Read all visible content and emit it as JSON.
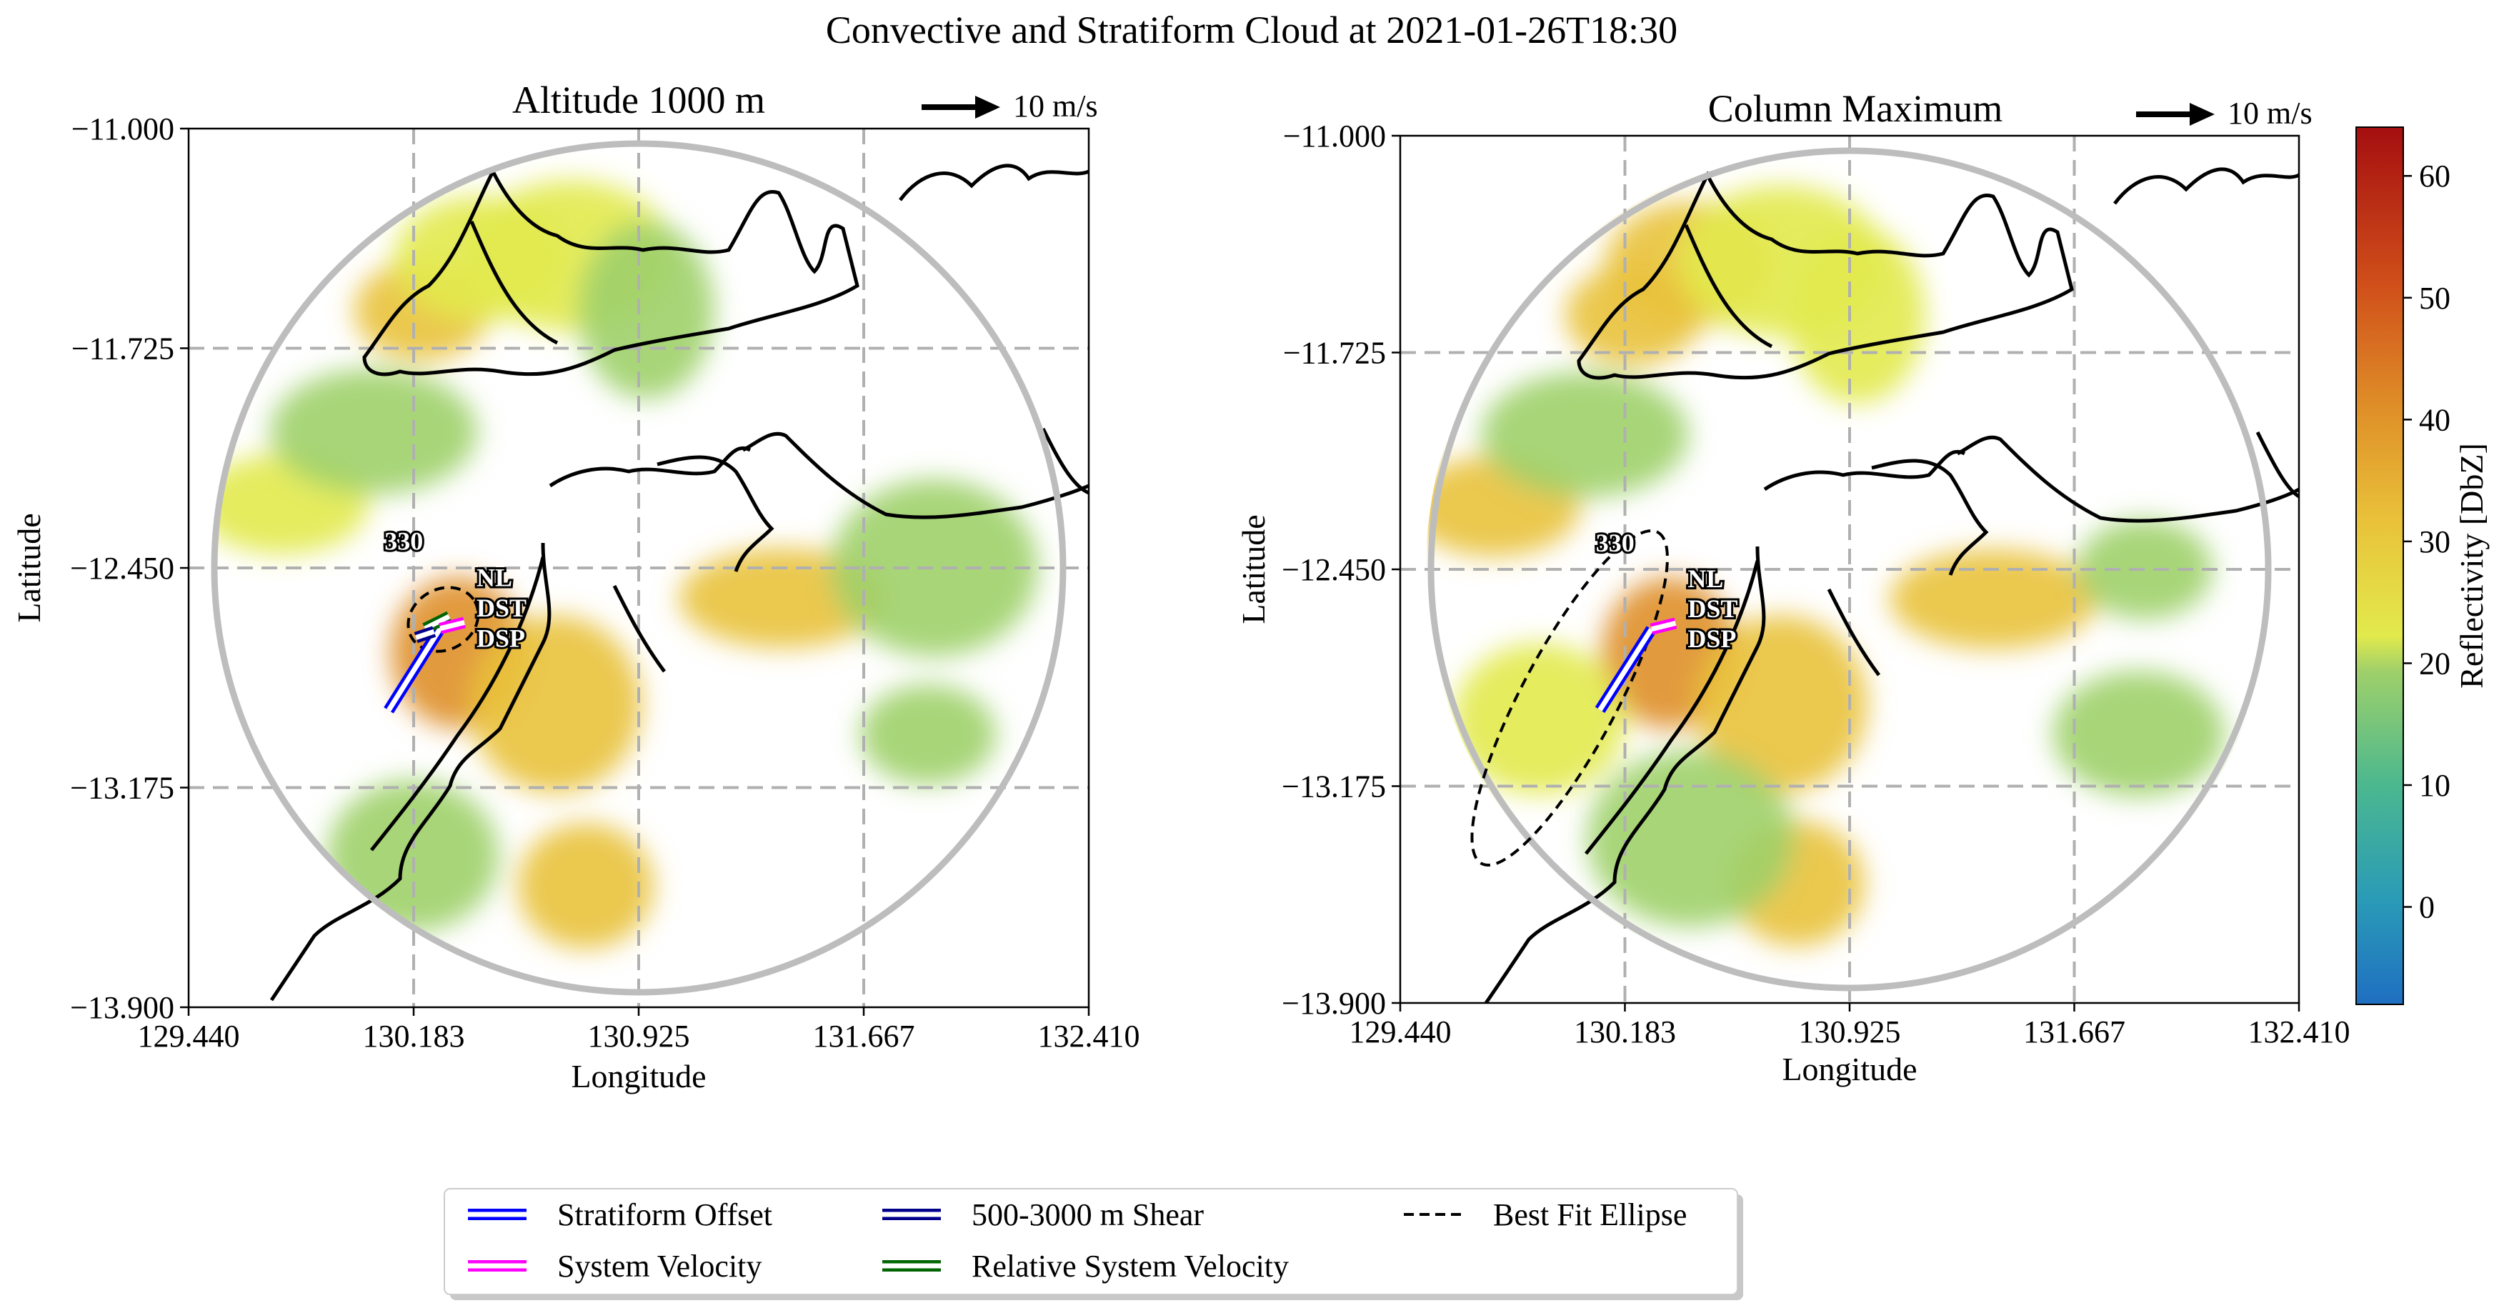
{
  "figure": {
    "suptitle": "Convective and Stratiform Cloud at 2021-01-26T18:30"
  },
  "colors": {
    "stratiform_offset": "#0000ff",
    "system_velocity": "#ff00ff",
    "shear": "#00008b",
    "relative_system_velocity": "#006400",
    "ellipse": "#000000",
    "range_ring": "#bdbdbd",
    "grid": "#b0b0b0"
  },
  "chart_data": [
    {
      "type": "heatmap",
      "title": "Altitude 1000 m",
      "xlabel": "Longitude",
      "ylabel": "Latitude",
      "xlim": [
        129.44,
        132.41
      ],
      "ylim": [
        -13.9,
        -11.0
      ],
      "xticks": [
        "129.440",
        "130.183",
        "130.925",
        "131.667",
        "132.410"
      ],
      "yticks": [
        "-11.000",
        "-11.725",
        "-12.450",
        "-13.175",
        "-13.900"
      ],
      "grid": true,
      "reference_vector": "10 m/s",
      "radar_center": [
        130.925,
        -12.45
      ],
      "range_radius_deg": 1.4,
      "object_label": "330",
      "object_label_pos": [
        130.15,
        -12.39
      ],
      "vector_labels": [
        {
          "text": "NL",
          "pos": [
            130.39,
            -12.51
          ]
        },
        {
          "text": "DST",
          "pos": [
            130.39,
            -12.61
          ]
        },
        {
          "text": "DSP",
          "pos": [
            130.39,
            -12.71
          ]
        }
      ],
      "vectors": {
        "stratiform_offset": {
          "start": [
            130.1,
            -12.92
          ],
          "end": [
            130.27,
            -12.65
          ]
        },
        "system_velocity": {
          "start": [
            130.35,
            -12.63
          ],
          "end": [
            130.27,
            -12.65
          ]
        },
        "shear": {
          "start": [
            130.19,
            -12.68
          ],
          "end": [
            130.25,
            -12.66
          ]
        },
        "relative_system_velocity": {
          "start": [
            130.22,
            -12.65
          ],
          "end": [
            130.3,
            -12.61
          ]
        }
      },
      "ellipse": {
        "center": [
          130.28,
          -12.62
        ],
        "rx_deg": 0.12,
        "ry_deg": 0.1,
        "angle_deg": -30
      },
      "reflectivity_cells": [
        {
          "lon": 130.21,
          "lat": -11.6,
          "dbz": 25
        },
        {
          "lon": 130.4,
          "lat": -11.43,
          "dbz": 22
        },
        {
          "lon": 130.7,
          "lat": -11.42,
          "dbz": 20
        },
        {
          "lon": 130.95,
          "lat": -11.6,
          "dbz": 17
        },
        {
          "lon": 129.75,
          "lat": -12.24,
          "dbz": 22
        },
        {
          "lon": 130.05,
          "lat": -12.0,
          "dbz": 17
        },
        {
          "lon": 130.33,
          "lat": -12.73,
          "dbz": 33
        },
        {
          "lon": 130.65,
          "lat": -12.9,
          "dbz": 28
        },
        {
          "lon": 131.4,
          "lat": -12.55,
          "dbz": 27
        },
        {
          "lon": 130.75,
          "lat": -13.5,
          "dbz": 30
        },
        {
          "lon": 130.18,
          "lat": -13.4,
          "dbz": 18
        },
        {
          "lon": 131.9,
          "lat": -12.45,
          "dbz": 14
        },
        {
          "lon": 131.88,
          "lat": -13.0,
          "dbz": 12
        }
      ]
    },
    {
      "type": "heatmap",
      "title": "Column Maximum",
      "xlabel": "Longitude",
      "ylabel": "Latitude",
      "xlim": [
        129.44,
        132.41
      ],
      "ylim": [
        -13.9,
        -11.0
      ],
      "xticks": [
        "129.440",
        "130.183",
        "130.925",
        "131.667",
        "132.410"
      ],
      "yticks": [
        "-11.000",
        "-11.725",
        "-12.450",
        "-13.175",
        "-13.900"
      ],
      "grid": true,
      "reference_vector": "10 m/s",
      "radar_center": [
        130.925,
        -12.45
      ],
      "range_radius_deg": 1.4,
      "object_label": "330",
      "object_label_pos": [
        130.15,
        -12.39
      ],
      "vector_labels": [
        {
          "text": "NL",
          "pos": [
            130.39,
            -12.51
          ]
        },
        {
          "text": "DST",
          "pos": [
            130.39,
            -12.61
          ]
        },
        {
          "text": "DSP",
          "pos": [
            130.39,
            -12.71
          ]
        }
      ],
      "vectors": {
        "stratiform_offset": {
          "start": [
            130.1,
            -12.92
          ],
          "end": [
            130.27,
            -12.65
          ]
        },
        "system_velocity": {
          "start": [
            130.35,
            -12.63
          ],
          "end": [
            130.27,
            -12.65
          ]
        }
      },
      "ellipse": {
        "center": [
          130.0,
          -12.88
        ],
        "rx_deg": 0.62,
        "ry_deg": 0.16,
        "angle_deg": -62
      },
      "reflectivity_cells": [
        {
          "lon": 130.21,
          "lat": -11.6,
          "dbz": 28
        },
        {
          "lon": 130.4,
          "lat": -11.43,
          "dbz": 24
        },
        {
          "lon": 130.7,
          "lat": -11.42,
          "dbz": 22
        },
        {
          "lon": 130.95,
          "lat": -11.6,
          "dbz": 20
        },
        {
          "lon": 129.75,
          "lat": -12.24,
          "dbz": 24
        },
        {
          "lon": 130.05,
          "lat": -12.0,
          "dbz": 19
        },
        {
          "lon": 130.33,
          "lat": -12.73,
          "dbz": 36
        },
        {
          "lon": 130.7,
          "lat": -12.9,
          "dbz": 31
        },
        {
          "lon": 131.4,
          "lat": -12.55,
          "dbz": 30
        },
        {
          "lon": 130.75,
          "lat": -13.5,
          "dbz": 32
        },
        {
          "lon": 129.9,
          "lat": -12.95,
          "dbz": 20
        },
        {
          "lon": 130.4,
          "lat": -13.35,
          "dbz": 16
        },
        {
          "lon": 131.9,
          "lat": -12.45,
          "dbz": 15
        },
        {
          "lon": 131.88,
          "lat": -13.0,
          "dbz": 14
        }
      ]
    }
  ],
  "colorbar": {
    "label": "Reflectivity [DbZ]",
    "min": -8,
    "max": 64,
    "ticks": [
      "0",
      "10",
      "20",
      "30",
      "40",
      "50",
      "60"
    ],
    "tick_values": [
      0,
      10,
      20,
      30,
      40,
      50,
      60
    ]
  },
  "legend": {
    "items": [
      {
        "label": "Stratiform Offset",
        "style": "double",
        "color_key": "stratiform_offset"
      },
      {
        "label": "System Velocity",
        "style": "double",
        "color_key": "system_velocity"
      },
      {
        "label": "500-3000 m Shear",
        "style": "double",
        "color_key": "shear"
      },
      {
        "label": "Relative System Velocity",
        "style": "double",
        "color_key": "relative_system_velocity"
      },
      {
        "label": "Best Fit Ellipse",
        "style": "dashed",
        "color_key": "ellipse"
      }
    ]
  }
}
